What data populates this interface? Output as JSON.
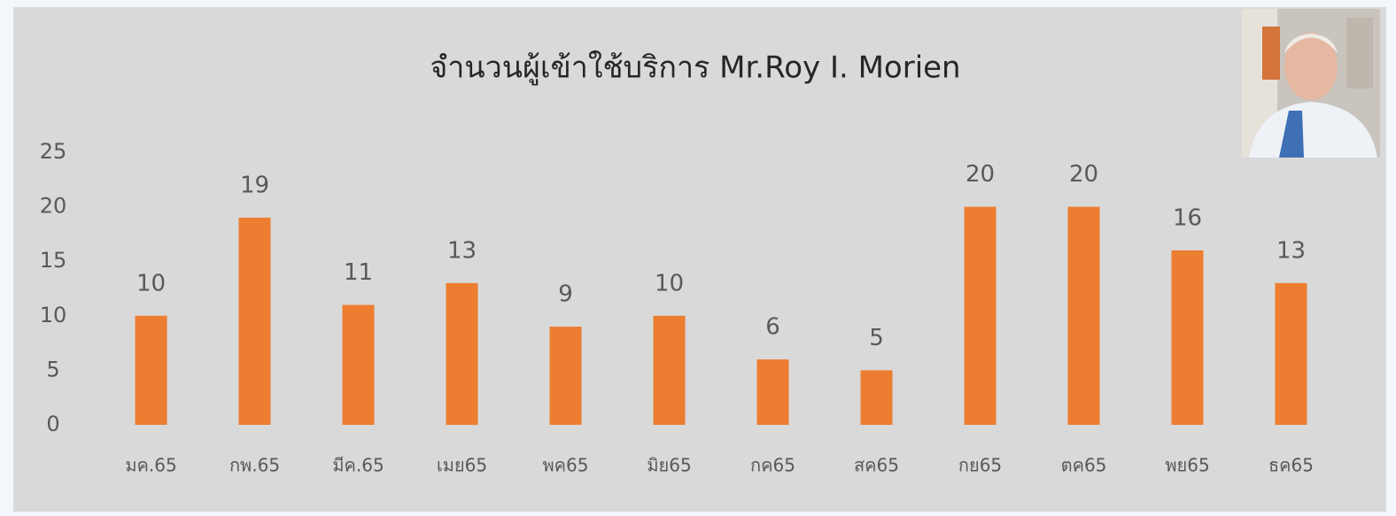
{
  "chart_data": {
    "type": "bar",
    "title": "จำนวนผู้เข้าใช้บริการ Mr.Roy I. Morien",
    "categories": [
      "มค.65",
      "กพ.65",
      "มีค.65",
      "เมย65",
      "พค65",
      "มิย65",
      "กค65",
      "สค65",
      "กย65",
      "ตค65",
      "พย65",
      "ธค65"
    ],
    "values": [
      10,
      19,
      11,
      13,
      9,
      10,
      6,
      5,
      20,
      20,
      16,
      13
    ],
    "color": "#ed7d31",
    "ylim": [
      0,
      25
    ],
    "yticks": [
      0,
      5,
      10,
      15,
      20,
      25
    ],
    "grid": false
  }
}
